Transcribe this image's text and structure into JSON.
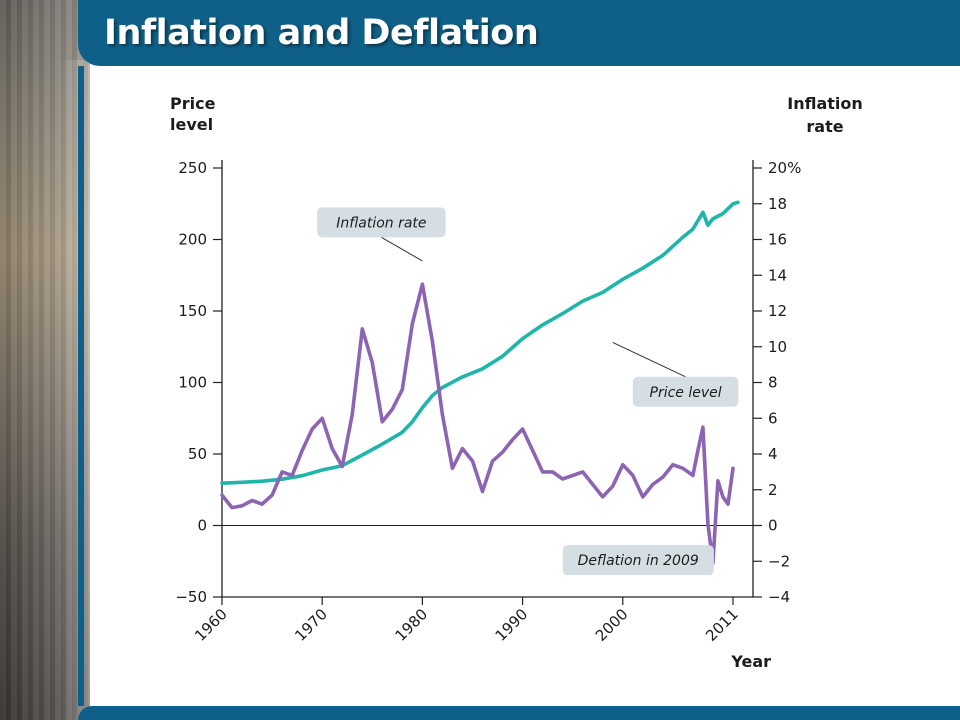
{
  "slide": {
    "title": "Inflation and Deflation"
  },
  "colors": {
    "header": "#0f6088",
    "price_level": "#1fb5a8",
    "inflation_rate": "#8d64b3",
    "callout_fill": "#d5dfe3"
  },
  "chart_data": {
    "type": "line",
    "left_axis_title": [
      "Price",
      "level"
    ],
    "right_axis_title": [
      "Inflation",
      "rate"
    ],
    "x_axis_title": "Year",
    "x_ticks": [
      "1960",
      "1970",
      "1980",
      "1990",
      "2000",
      "2011"
    ],
    "xlim": [
      1960,
      2013
    ],
    "left_ylim": [
      -50,
      250
    ],
    "left_ticks": [
      "250",
      "200",
      "150",
      "100",
      "50",
      "0",
      "−50"
    ],
    "right_ylim": [
      -4,
      20
    ],
    "right_ticks": [
      "20%",
      "18",
      "16",
      "14",
      "12",
      "10",
      "8",
      "6",
      "4",
      "2",
      "0",
      "−2",
      "−4"
    ],
    "series": [
      {
        "name": "Price level",
        "axis": "left",
        "x": [
          1960,
          1962,
          1964,
          1966,
          1968,
          1970,
          1972,
          1974,
          1976,
          1978,
          1979,
          1980,
          1981,
          1982,
          1984,
          1986,
          1988,
          1990,
          1992,
          1994,
          1996,
          1998,
          2000,
          2002,
          2004,
          2006,
          2007,
          2008,
          2008.5,
          2009,
          2010,
          2011,
          2011.5
        ],
        "values": [
          29.6,
          30.2,
          31.0,
          32.4,
          34.8,
          38.8,
          41.8,
          49.3,
          56.9,
          65.2,
          72.6,
          82.4,
          90.9,
          96.5,
          103.9,
          109.6,
          118.3,
          130.7,
          140.3,
          148.2,
          156.9,
          163.0,
          172.2,
          179.9,
          188.9,
          201.6,
          207.3,
          219.0,
          210.0,
          214.5,
          218.1,
          224.9,
          226.0
        ]
      },
      {
        "name": "Inflation rate",
        "axis": "right",
        "x": [
          1960,
          1961,
          1962,
          1963,
          1964,
          1965,
          1966,
          1967,
          1968,
          1969,
          1970,
          1971,
          1972,
          1973,
          1974,
          1975,
          1976,
          1977,
          1978,
          1979,
          1980,
          1981,
          1982,
          1983,
          1984,
          1985,
          1986,
          1987,
          1988,
          1989,
          1990,
          1991,
          1992,
          1993,
          1994,
          1995,
          1996,
          1997,
          1998,
          1999,
          2000,
          2001,
          2002,
          2003,
          2004,
          2005,
          2006,
          2007,
          2007.5,
          2008,
          2008.5,
          2009,
          2009.5,
          2010,
          2010.5,
          2011
        ],
        "values": [
          1.7,
          1.0,
          1.1,
          1.4,
          1.2,
          1.7,
          3.0,
          2.8,
          4.2,
          5.4,
          6.0,
          4.3,
          3.3,
          6.2,
          11.0,
          9.1,
          5.8,
          6.5,
          7.6,
          11.3,
          13.5,
          10.3,
          6.2,
          3.2,
          4.3,
          3.6,
          1.9,
          3.6,
          4.1,
          4.8,
          5.4,
          4.2,
          3.0,
          3.0,
          2.6,
          2.8,
          3.0,
          2.3,
          1.6,
          2.2,
          3.4,
          2.8,
          1.6,
          2.3,
          2.7,
          3.4,
          3.2,
          2.8,
          4.2,
          5.5,
          0.1,
          -2.1,
          2.5,
          1.6,
          1.2,
          3.2
        ]
      }
    ],
    "annotations": [
      {
        "text": "Inflation rate",
        "series": "Inflation rate",
        "x": 1980,
        "y": 14.8,
        "box_x": 1969.5,
        "box_y": 17.8
      },
      {
        "text": "Price level",
        "series": "Price level",
        "x": 1999,
        "y": 128,
        "box_x": 2001,
        "box_y": 104
      },
      {
        "text": "Deflation in 2009",
        "series": "Inflation rate",
        "x": 2009,
        "y": -2.0,
        "box_x": 1994,
        "box_y": -1.1
      }
    ]
  }
}
